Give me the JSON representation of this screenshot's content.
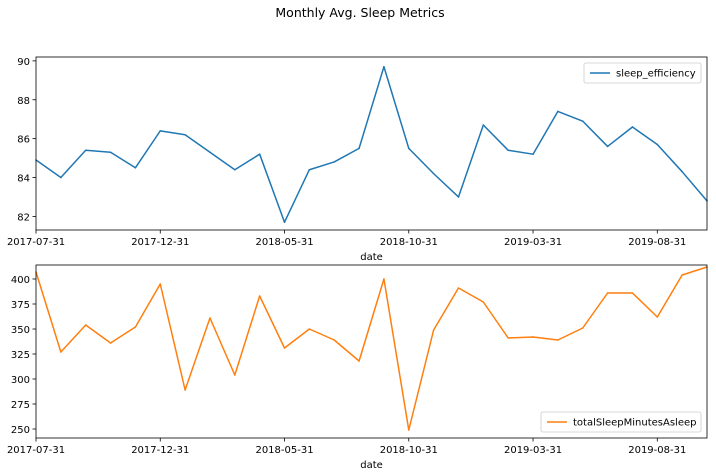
{
  "figure": {
    "title": "Monthly Avg. Sleep Metrics"
  },
  "chart_data": [
    {
      "type": "line",
      "xlabel": "date",
      "ylabel": "",
      "x_tick_labels": [
        "2017-07-31",
        "2017-12-31",
        "2018-05-31",
        "2018-10-31",
        "2019-03-31",
        "2019-08-31"
      ],
      "x_tick_index": [
        0,
        5,
        10,
        15,
        20,
        25
      ],
      "y_ticks": [
        82,
        84,
        86,
        88,
        90
      ],
      "ylim": [
        81.3,
        90.2
      ],
      "grid": false,
      "legend_position": "top-right",
      "series": [
        {
          "name": "sleep_efficiency",
          "color": "#1f77b4",
          "values": [
            84.9,
            84.0,
            85.4,
            85.3,
            84.5,
            86.4,
            86.2,
            85.3,
            84.4,
            85.2,
            81.7,
            84.4,
            84.8,
            85.5,
            89.7,
            85.5,
            84.2,
            83.0,
            86.7,
            85.4,
            85.2,
            87.4,
            86.9,
            85.6,
            86.6,
            85.7,
            84.3,
            82.8
          ]
        }
      ]
    },
    {
      "type": "line",
      "xlabel": "date",
      "ylabel": "",
      "x_tick_labels": [
        "2017-07-31",
        "2017-12-31",
        "2018-05-31",
        "2018-10-31",
        "2019-03-31",
        "2019-08-31"
      ],
      "x_tick_index": [
        0,
        5,
        10,
        15,
        20,
        25
      ],
      "y_ticks": [
        250,
        275,
        300,
        325,
        350,
        375,
        400
      ],
      "ylim": [
        241,
        414
      ],
      "grid": false,
      "legend_position": "bottom-right",
      "series": [
        {
          "name": "totalSleepMinutesAsleep",
          "color": "#ff7f0e",
          "values": [
            407,
            327,
            354,
            336,
            352,
            395,
            289,
            361,
            304,
            383,
            331,
            350,
            339,
            318,
            400,
            249,
            349,
            391,
            377,
            341,
            342,
            339,
            351,
            386,
            386,
            362,
            404,
            412
          ]
        }
      ]
    }
  ]
}
